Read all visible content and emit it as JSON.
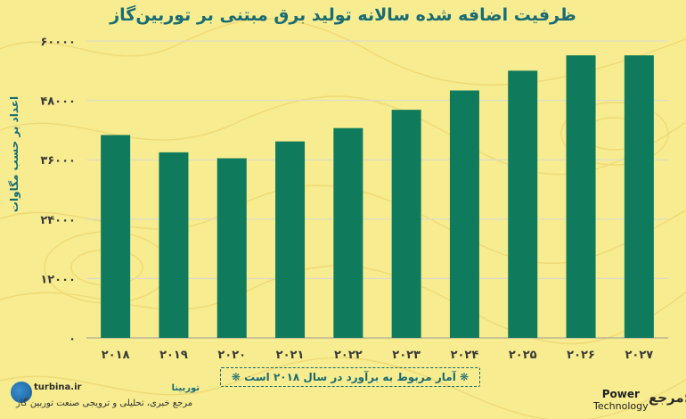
{
  "title": "ظرفیت اضافه شده سالانه تولید برق مبتنی بر توربین‌گاز",
  "ylabel": "اعداد بر حسب مگاوات",
  "note": "❋ آمار مربوط به برآورد در سال ۲۰۱۸ است ❋",
  "brand": {
    "url": "turbina.ir",
    "name": "توربینا",
    "sub": "مرجع خبری، تحلیلی و ترویجی صنعت توربین گاز"
  },
  "source": {
    "label": "مرجع:",
    "name_line1": "Power",
    "name_line2": "Technology"
  },
  "colors": {
    "bar": "#0f7a5c",
    "grid": "#d8d8d8",
    "text": "#1a6b72",
    "background": "#f6e98a"
  },
  "chart_data": {
    "type": "bar",
    "categories": [
      "۲۰۱۸",
      "۲۰۱۹",
      "۲۰۲۰",
      "۲۰۲۱",
      "۲۰۲۲",
      "۲۰۲۳",
      "۲۰۲۴",
      "۲۰۲۵",
      "۲۰۲۶",
      "۲۰۲۷"
    ],
    "values": [
      41000,
      37500,
      36300,
      39700,
      42400,
      46100,
      50000,
      54000,
      57100,
      57100
    ],
    "ylim": [
      0,
      60000
    ],
    "yticks": [
      0,
      12000,
      24000,
      36000,
      48000,
      60000
    ],
    "ytick_labels": [
      "۰",
      "۱۲۰۰۰",
      "۲۴۰۰۰",
      "۳۶۰۰۰",
      "۴۸۰۰۰",
      "۶۰۰۰۰"
    ],
    "grid": true
  }
}
